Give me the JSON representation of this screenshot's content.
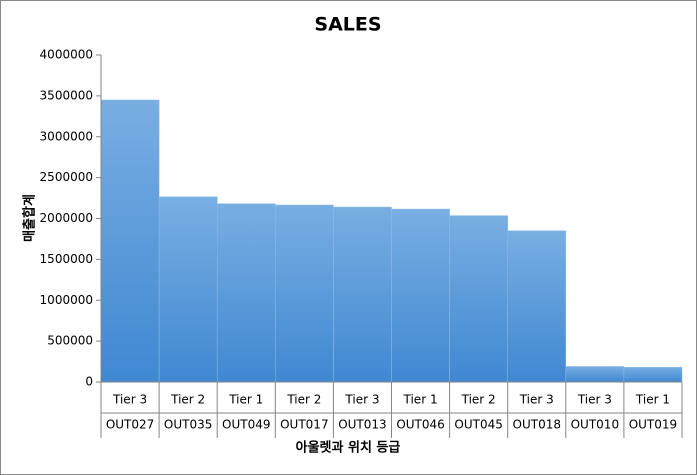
{
  "chart_data": {
    "type": "bar",
    "title": "SALES",
    "x_label": "아울렛과 위치 등급",
    "y_label": "매출합계",
    "tiers": [
      "Tier 3",
      "Tier 2",
      "Tier 1",
      "Tier 2",
      "Tier 3",
      "Tier 1",
      "Tier 2",
      "Tier 3",
      "Tier 3",
      "Tier 1"
    ],
    "categories": [
      "OUT027",
      "OUT035",
      "OUT049",
      "OUT017",
      "OUT013",
      "OUT046",
      "OUT045",
      "OUT018",
      "OUT010",
      "OUT019"
    ],
    "values": [
      3450000,
      2265000,
      2180000,
      2165000,
      2140000,
      2115000,
      2035000,
      1850000,
      190000,
      180000
    ],
    "color": "#5b9bd5",
    "ylim": [
      0,
      4000000
    ],
    "yticks": [
      0,
      500000,
      1000000,
      1500000,
      2000000,
      2500000,
      3000000,
      3500000,
      4000000
    ],
    "grid": false
  }
}
